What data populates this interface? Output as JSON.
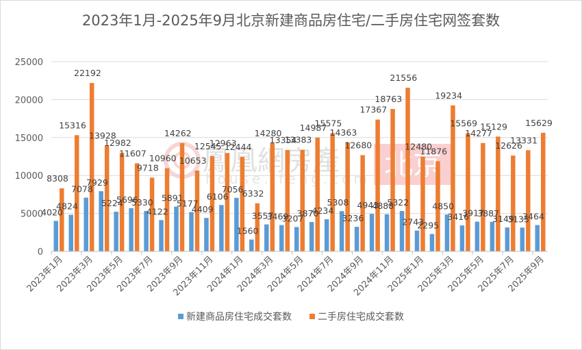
{
  "chart_data": {
    "type": "bar",
    "title": "2023年1月-2025年9月北京新建商品房住宅/二手房住宅网签套数",
    "xlabel": "",
    "ylabel": "",
    "ylim": [
      0,
      25000
    ],
    "yticks": [
      0,
      5000,
      10000,
      15000,
      20000,
      25000
    ],
    "grid": true,
    "legend_position": "bottom",
    "categories": [
      "2023年1月",
      "2023年2月",
      "2023年3月",
      "2023年4月",
      "2023年5月",
      "2023年6月",
      "2023年7月",
      "2023年8月",
      "2023年9月",
      "2023年10月",
      "2023年11月",
      "2023年12月",
      "2024年1月",
      "2024年2月",
      "2024年3月",
      "2024年4月",
      "2024年5月",
      "2024年6月",
      "2024年7月",
      "2024年8月",
      "2024年9月",
      "2024年10月",
      "2024年11月",
      "2024年12月",
      "2025年1月",
      "2025年2月",
      "2025年3月",
      "2025年4月",
      "2025年5月",
      "2025年6月",
      "2025年7月",
      "2025年8月",
      "2025年9月"
    ],
    "tick_labels_shown": [
      "2023年1月",
      "2023年3月",
      "2023年5月",
      "2023年7月",
      "2023年9月",
      "2023年11月",
      "2024年1月",
      "2024年3月",
      "2024年5月",
      "2024年7月",
      "2024年9月",
      "2024年11月",
      "2025年1月",
      "2025年3月",
      "2025年5月",
      "2025年7月",
      "2025年9月"
    ],
    "series": [
      {
        "name": "新建商品房住宅成交套数",
        "color": "#5b9bd5",
        "values": [
          4020,
          4824,
          7078,
          7929,
          5224,
          5696,
          5330,
          4122,
          5891,
          5177,
          4409,
          6106,
          7056,
          1560,
          3557,
          3469,
          3207,
          3870,
          4234,
          5308,
          3236,
          4943,
          4888,
          5322,
          2743,
          2295,
          4850,
          3416,
          3917,
          3887,
          3149,
          3135,
          3464
        ]
      },
      {
        "name": "二手房住宅成交套数",
        "color": "#ed7d31",
        "values": [
          8308,
          15316,
          22192,
          13928,
          12982,
          11607,
          9718,
          10960,
          14262,
          10653,
          12545,
          12963,
          12444,
          6332,
          14280,
          13354,
          13383,
          14987,
          15575,
          14363,
          12680,
          17367,
          18763,
          21556,
          12480,
          11876,
          19234,
          15569,
          14277,
          15129,
          12626,
          13331,
          15629
        ]
      }
    ]
  },
  "watermark": {
    "brand_text": "鳳凰網房產",
    "url_text": "house.ifeng.com",
    "city_badge": "北京"
  }
}
